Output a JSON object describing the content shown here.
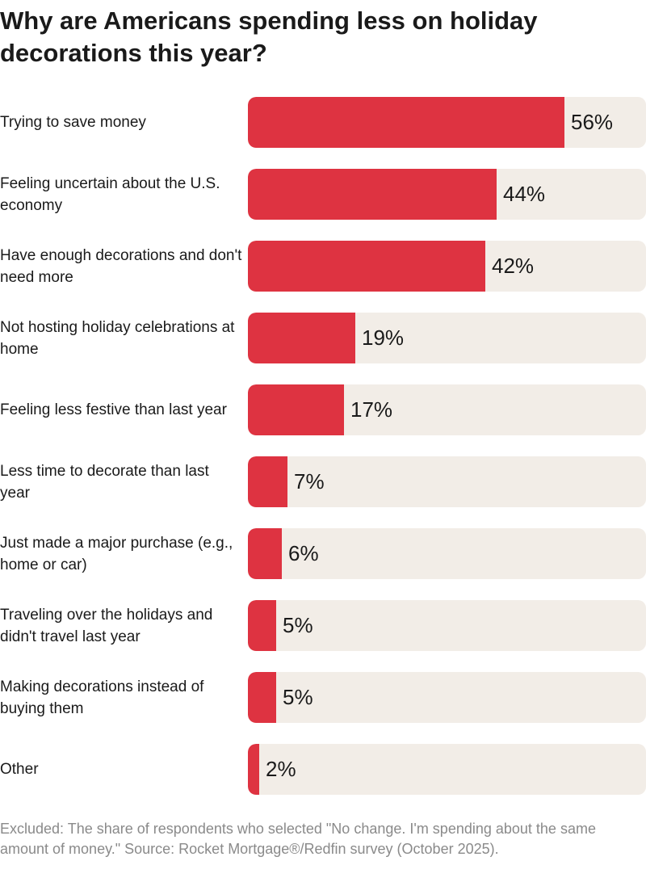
{
  "chart_data": {
    "type": "bar",
    "orientation": "horizontal",
    "title": "Why are Americans spending less on holiday decorations this year?",
    "categories": [
      "Trying to save money",
      "Feeling uncertain about the U.S. economy",
      "Have enough decorations and don't need more",
      "Not hosting holiday celebrations at home",
      "Feeling less festive than last year",
      "Less time to decorate than last year",
      "Just made a major purchase (e.g., home or car)",
      "Traveling over the holidays and didn't travel last year",
      "Making decorations instead of buying them",
      "Other"
    ],
    "values": [
      56,
      44,
      42,
      19,
      17,
      7,
      6,
      5,
      5,
      2
    ],
    "value_labels": [
      "56%",
      "44%",
      "42%",
      "19%",
      "17%",
      "7%",
      "6%",
      "5%",
      "5%",
      "2%"
    ],
    "unit": "%",
    "grid": false,
    "colors": {
      "bar": "#DE3341",
      "track": "#F2EDE7"
    },
    "footnote": "Excluded: The share of respondents who selected \"No change. I'm spending about the same amount of money.\" Source: Rocket Mortgage®/Redfin survey (October 2025)."
  }
}
